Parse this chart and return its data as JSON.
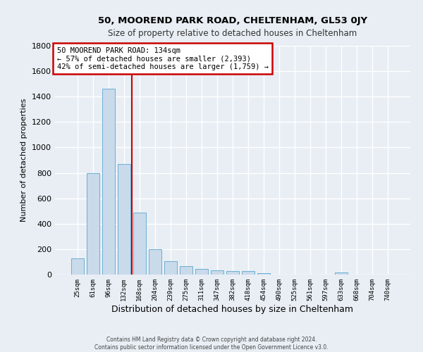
{
  "title1": "50, MOOREND PARK ROAD, CHELTENHAM, GL53 0JY",
  "title2": "Size of property relative to detached houses in Cheltenham",
  "xlabel": "Distribution of detached houses by size in Cheltenham",
  "ylabel": "Number of detached properties",
  "categories": [
    "25sqm",
    "61sqm",
    "96sqm",
    "132sqm",
    "168sqm",
    "204sqm",
    "239sqm",
    "275sqm",
    "311sqm",
    "347sqm",
    "382sqm",
    "418sqm",
    "454sqm",
    "490sqm",
    "525sqm",
    "561sqm",
    "597sqm",
    "633sqm",
    "668sqm",
    "704sqm",
    "740sqm"
  ],
  "values": [
    130,
    800,
    1460,
    870,
    490,
    200,
    105,
    65,
    45,
    35,
    30,
    25,
    12,
    0,
    0,
    0,
    0,
    15,
    0,
    0,
    0
  ],
  "bar_color": "#c9daea",
  "bar_edge_color": "#6baed6",
  "annotation_text": "50 MOOREND PARK ROAD: 134sqm\n← 57% of detached houses are smaller (2,393)\n42% of semi-detached houses are larger (1,759) →",
  "annotation_box_color": "#ffffff",
  "annotation_border_color": "#cc0000",
  "ylim": [
    0,
    1800
  ],
  "yticks": [
    0,
    200,
    400,
    600,
    800,
    1000,
    1200,
    1400,
    1600,
    1800
  ],
  "footer1": "Contains HM Land Registry data © Crown copyright and database right 2024.",
  "footer2": "Contains public sector information licensed under the Open Government Licence v3.0.",
  "bg_color": "#e8eef4",
  "grid_color": "#ffffff",
  "vline_color": "#cc0000",
  "vline_x_index": 3.5
}
